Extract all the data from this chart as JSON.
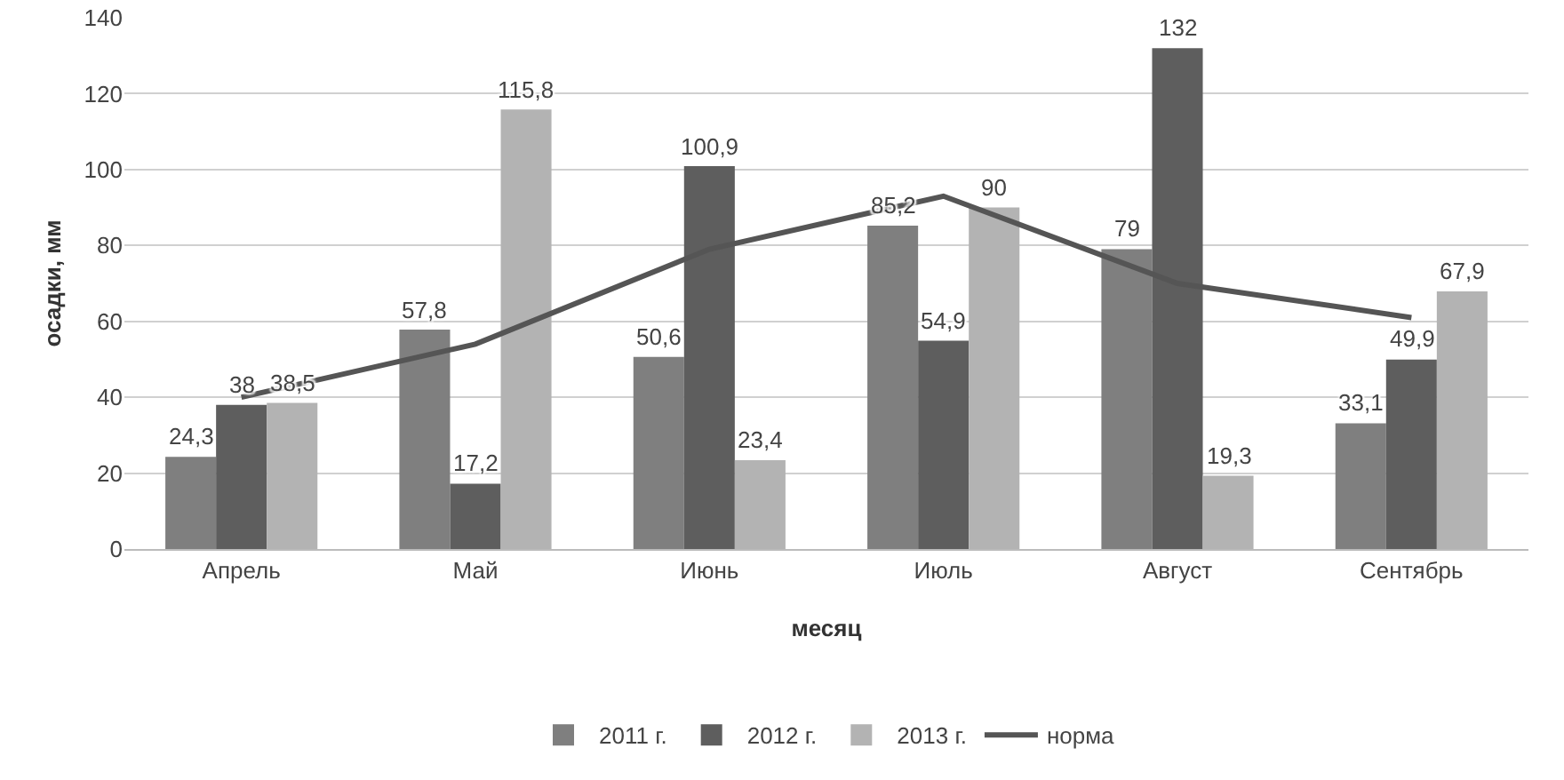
{
  "chart_data": {
    "type": "bar",
    "xlabel": "месяц",
    "ylabel": "осадки, мм",
    "categories": [
      "Апрель",
      "Май",
      "Июнь",
      "Июль",
      "Август",
      "Сентябрь"
    ],
    "series": [
      {
        "name": "2011 г.",
        "color": "#7f7f7f",
        "values": [
          24.3,
          57.8,
          50.6,
          85.2,
          79,
          33.1
        ],
        "value_labels": [
          "24,3",
          "57,8",
          "50,6",
          "85,2",
          "79",
          "33,1"
        ]
      },
      {
        "name": "2012 г.",
        "color": "#5e5e5e",
        "values": [
          38,
          17.2,
          100.9,
          54.9,
          132,
          49.9
        ],
        "value_labels": [
          "38",
          "17,2",
          "100,9",
          "54,9",
          "132",
          "49,9"
        ]
      },
      {
        "name": "2013 г.",
        "color": "#b3b3b3",
        "values": [
          38.5,
          115.8,
          23.4,
          90,
          19.3,
          67.9
        ],
        "value_labels": [
          "38,5",
          "115,8",
          "23,4",
          "90",
          "19,3",
          "67,9"
        ]
      },
      {
        "name": "норма",
        "type": "line",
        "color": "#555555",
        "values": [
          40,
          54,
          79,
          93,
          70,
          61
        ]
      }
    ],
    "ylim": [
      0,
      140
    ],
    "yticks": [
      0,
      20,
      40,
      60,
      80,
      100,
      120,
      140
    ],
    "grid": "y",
    "legend": "bottom",
    "marker": "none",
    "line_style": "solid"
  }
}
